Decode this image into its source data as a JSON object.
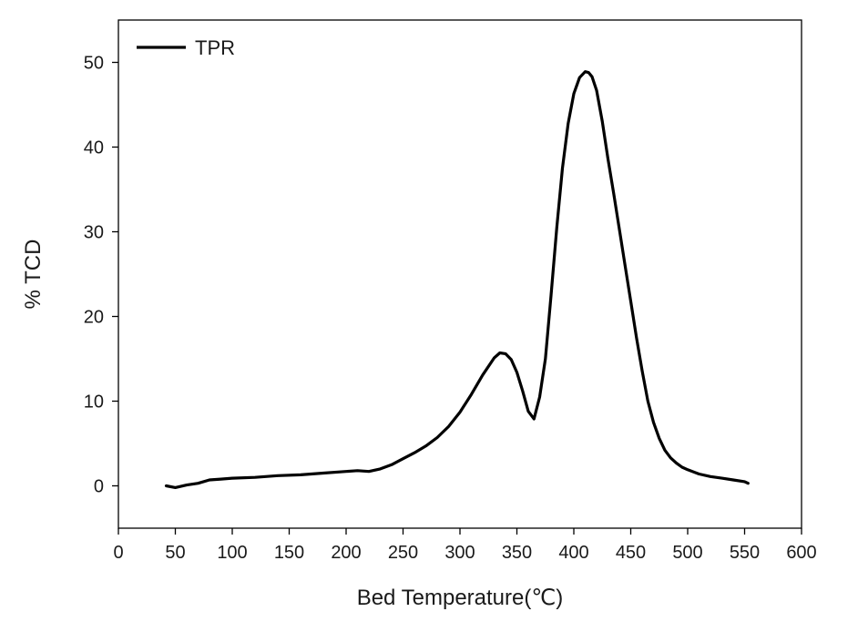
{
  "chart_data": {
    "type": "line",
    "title": "",
    "xlabel": "Bed Temperature(℃)",
    "ylabel": "% TCD",
    "xlim": [
      0,
      600
    ],
    "ylim": [
      -5,
      55
    ],
    "xticks": [
      0,
      50,
      100,
      150,
      200,
      250,
      300,
      350,
      400,
      450,
      500,
      550,
      600
    ],
    "yticks": [
      0,
      10,
      20,
      30,
      40,
      50
    ],
    "grid": false,
    "legend": {
      "position": "top-left",
      "entries": [
        "TPR"
      ]
    },
    "series": [
      {
        "name": "TPR",
        "color": "#000000",
        "x": [
          42,
          50,
          60,
          70,
          80,
          90,
          100,
          120,
          140,
          160,
          180,
          200,
          210,
          220,
          230,
          240,
          250,
          260,
          270,
          280,
          290,
          300,
          310,
          320,
          330,
          335,
          340,
          345,
          350,
          355,
          360,
          365,
          370,
          375,
          380,
          385,
          390,
          395,
          400,
          405,
          410,
          413,
          416,
          420,
          425,
          430,
          435,
          440,
          445,
          450,
          455,
          460,
          465,
          470,
          475,
          480,
          485,
          490,
          495,
          500,
          510,
          520,
          530,
          540,
          550,
          553
        ],
        "y": [
          0.0,
          -0.2,
          0.1,
          0.3,
          0.7,
          0.8,
          0.9,
          1.0,
          1.2,
          1.3,
          1.5,
          1.7,
          1.8,
          1.7,
          2.0,
          2.5,
          3.2,
          3.9,
          4.7,
          5.7,
          7.0,
          8.7,
          10.8,
          13.1,
          15.1,
          15.7,
          15.6,
          14.9,
          13.4,
          11.2,
          8.8,
          7.9,
          10.5,
          15.0,
          22.5,
          30.5,
          37.5,
          42.8,
          46.3,
          48.2,
          48.9,
          48.8,
          48.3,
          46.7,
          43.0,
          38.6,
          34.5,
          30.3,
          26.0,
          21.8,
          17.5,
          13.6,
          10.0,
          7.5,
          5.6,
          4.2,
          3.3,
          2.7,
          2.2,
          1.9,
          1.4,
          1.1,
          0.9,
          0.7,
          0.5,
          0.3
        ]
      }
    ]
  }
}
